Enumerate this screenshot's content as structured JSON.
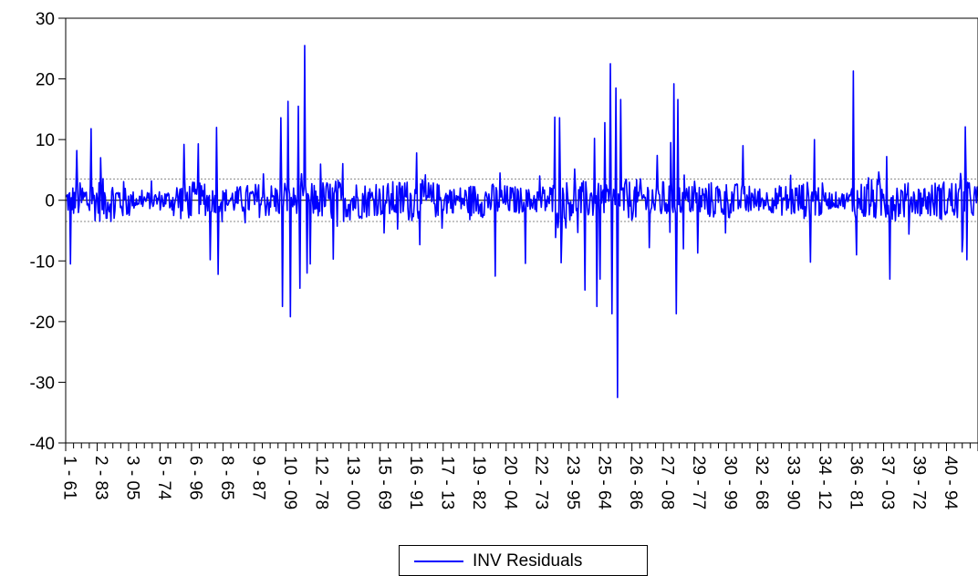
{
  "chart_data": {
    "type": "line",
    "title": "",
    "xlabel": "",
    "ylabel": "",
    "ylim": [
      -40,
      30
    ],
    "yticks": [
      30,
      20,
      10,
      0,
      -10,
      -20,
      -30,
      -40
    ],
    "x_tick_labels": [
      "1 - 61",
      "2 - 83",
      "3 - 05",
      "5 - 74",
      "6 - 96",
      "8 - 65",
      "9 - 87",
      "10 - 09",
      "12 - 78",
      "13 - 00",
      "15 - 69",
      "16 - 91",
      "17 - 13",
      "19 - 82",
      "20 - 04",
      "22 - 73",
      "23 - 95",
      "25 - 64",
      "26 - 86",
      "27 - 08",
      "29 - 77",
      "30 - 99",
      "32 - 68",
      "33 - 90",
      "34 - 12",
      "36 - 81",
      "37 - 03",
      "39 - 72",
      "40 - 94"
    ],
    "reference_lines": [
      3.5,
      -3.5
    ],
    "series": [
      {
        "name": "INV Residuals",
        "color": "#0000ff",
        "point_count": 1150,
        "large_spikes": [
          {
            "t": 0.005,
            "value": -10.5
          },
          {
            "t": 0.012,
            "value": 8.2
          },
          {
            "t": 0.028,
            "value": 11.8
          },
          {
            "t": 0.038,
            "value": 7.0
          },
          {
            "t": 0.13,
            "value": 9.2
          },
          {
            "t": 0.145,
            "value": 9.3
          },
          {
            "t": 0.158,
            "value": -9.8
          },
          {
            "t": 0.165,
            "value": 12.0
          },
          {
            "t": 0.167,
            "value": -12.2
          },
          {
            "t": 0.236,
            "value": 13.6
          },
          {
            "t": 0.238,
            "value": -17.5
          },
          {
            "t": 0.244,
            "value": 16.3
          },
          {
            "t": 0.246,
            "value": -19.2
          },
          {
            "t": 0.255,
            "value": 15.5
          },
          {
            "t": 0.257,
            "value": -14.5
          },
          {
            "t": 0.262,
            "value": 25.5
          },
          {
            "t": 0.265,
            "value": -12.0
          },
          {
            "t": 0.268,
            "value": -10.5
          },
          {
            "t": 0.293,
            "value": -9.7
          },
          {
            "t": 0.385,
            "value": 7.8
          },
          {
            "t": 0.471,
            "value": -12.5
          },
          {
            "t": 0.504,
            "value": -10.4
          },
          {
            "t": 0.536,
            "value": 13.7
          },
          {
            "t": 0.541,
            "value": 13.6
          },
          {
            "t": 0.543,
            "value": -10.3
          },
          {
            "t": 0.569,
            "value": -14.8
          },
          {
            "t": 0.58,
            "value": 10.2
          },
          {
            "t": 0.582,
            "value": -17.5
          },
          {
            "t": 0.586,
            "value": -13.0
          },
          {
            "t": 0.591,
            "value": 12.8
          },
          {
            "t": 0.597,
            "value": 22.5
          },
          {
            "t": 0.599,
            "value": -18.7
          },
          {
            "t": 0.603,
            "value": 18.5
          },
          {
            "t": 0.605,
            "value": -32.5
          },
          {
            "t": 0.608,
            "value": 16.6
          },
          {
            "t": 0.663,
            "value": 9.5
          },
          {
            "t": 0.667,
            "value": 19.2
          },
          {
            "t": 0.669,
            "value": -18.7
          },
          {
            "t": 0.671,
            "value": 16.6
          },
          {
            "t": 0.677,
            "value": -8.0
          },
          {
            "t": 0.693,
            "value": -8.7
          },
          {
            "t": 0.742,
            "value": 9.0
          },
          {
            "t": 0.821,
            "value": 10.0
          },
          {
            "t": 0.816,
            "value": -10.2
          },
          {
            "t": 0.863,
            "value": 21.3
          },
          {
            "t": 0.867,
            "value": -9.0
          },
          {
            "t": 0.903,
            "value": -13.0
          },
          {
            "t": 0.9,
            "value": 7.2
          },
          {
            "t": 0.986,
            "value": 12.1
          },
          {
            "t": 0.983,
            "value": -8.5
          },
          {
            "t": 0.988,
            "value": -9.8
          }
        ]
      }
    ],
    "legend": {
      "position": "bottom-center",
      "label": "INV Residuals"
    }
  }
}
